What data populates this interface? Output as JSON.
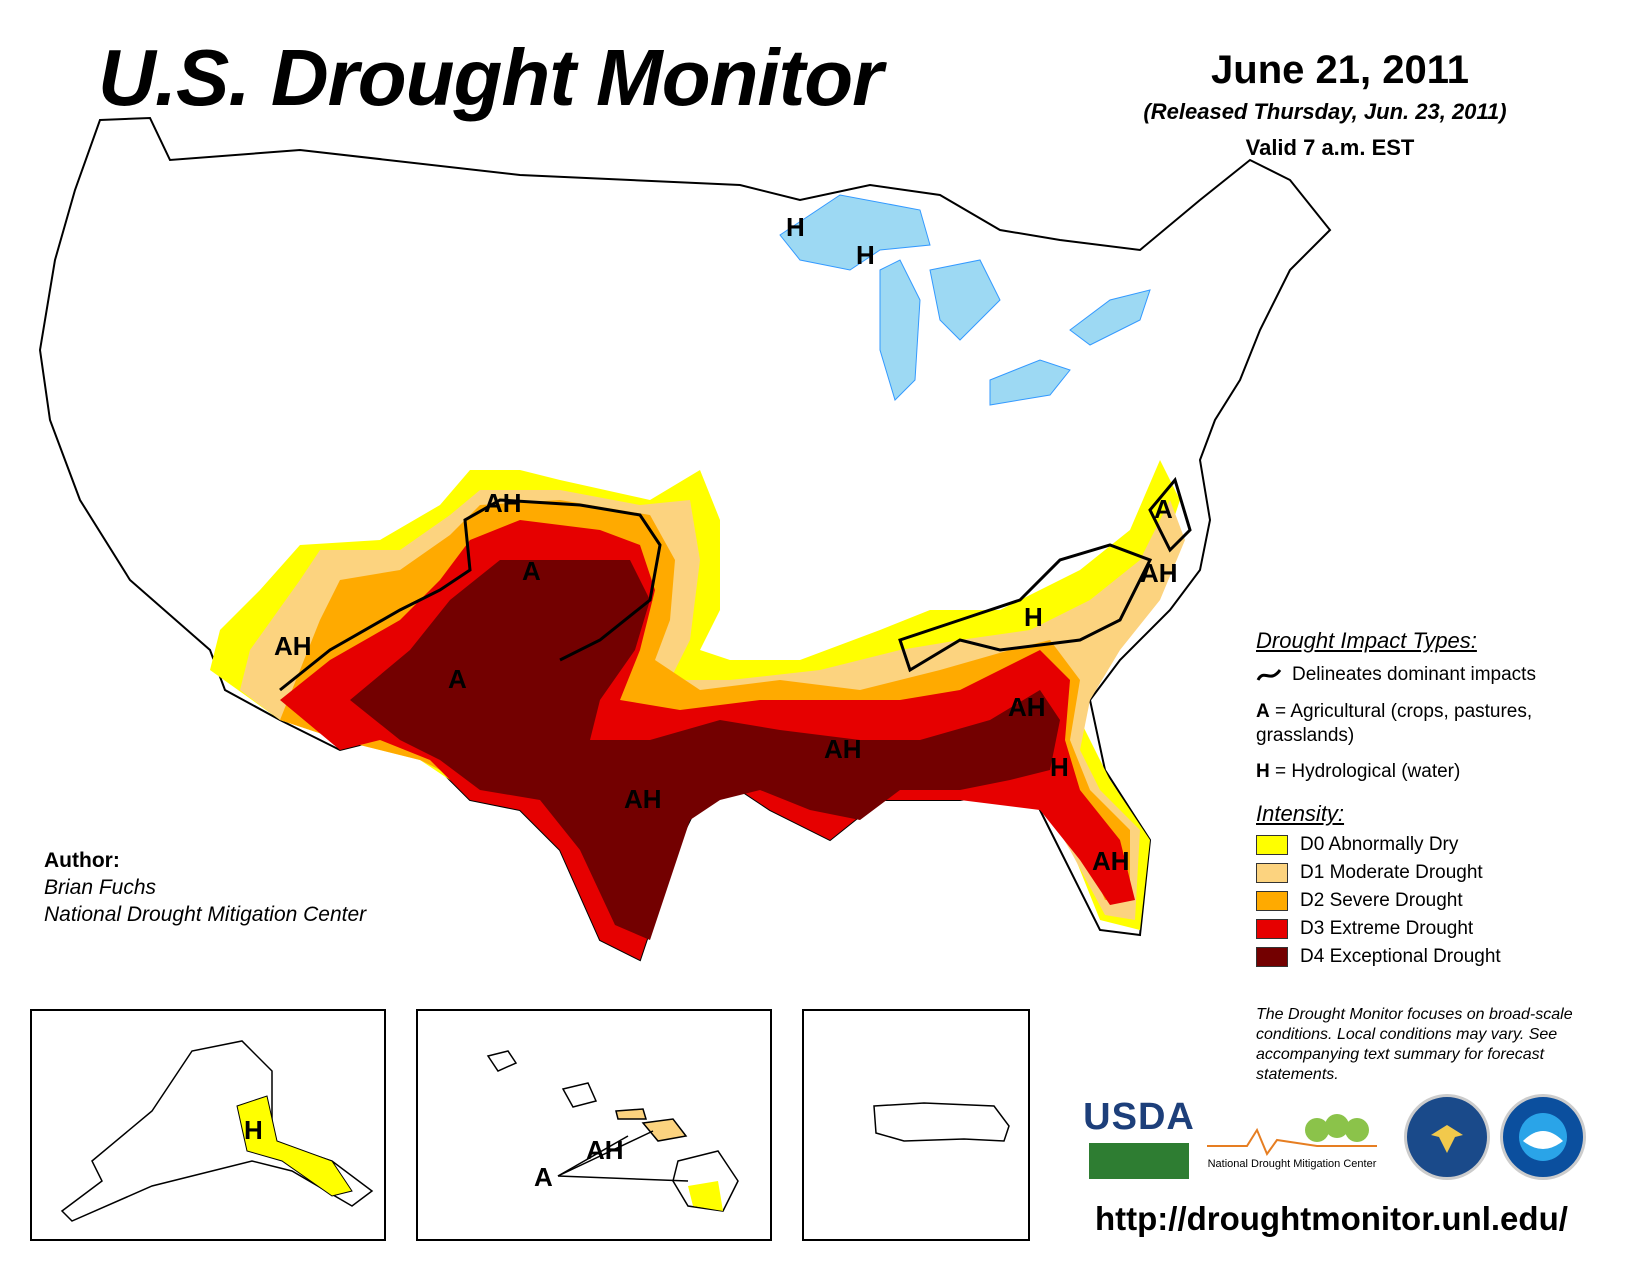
{
  "header": {
    "title": "U.S. Drought Monitor",
    "date": "June 21, 2011",
    "released": "(Released Thursday, Jun. 23, 2011)",
    "valid": "Valid 7 a.m. EST"
  },
  "map_labels": {
    "ah": "AH",
    "a": "A",
    "h": "H"
  },
  "legend": {
    "impact_title": "Drought Impact Types:",
    "delineates": "Delineates dominant impacts",
    "agricultural_key": "A",
    "agricultural_text": " = Agricultural (crops, pastures, grasslands)",
    "hydrological_key": "H",
    "hydrological_text": " = Hydrological (water)",
    "intensity_title": "Intensity:",
    "levels": [
      {
        "label": "D0 Abnormally Dry",
        "color": "#ffff00"
      },
      {
        "label": "D1 Moderate Drought",
        "color": "#fcd37f"
      },
      {
        "label": "D2 Severe Drought",
        "color": "#ffaa00"
      },
      {
        "label": "D3 Extreme Drought",
        "color": "#e60000"
      },
      {
        "label": "D4 Exceptional Drought",
        "color": "#730000"
      }
    ],
    "note": "The Drought Monitor focuses on broad-scale conditions. Local conditions may vary. See accompanying text summary for forecast statements."
  },
  "author": {
    "label": "Author:",
    "name": "Brian Fuchs",
    "org": "National Drought Mitigation Center"
  },
  "logos": {
    "usda": "USDA",
    "ndmc": "National Drought Mitigation Center"
  },
  "footer": {
    "url": "http://droughtmonitor.unl.edu/"
  },
  "colors": {
    "water": "#9dd9f3",
    "river": "#3399ff",
    "state_border": "#000000",
    "county_border": "#aaaaaa"
  }
}
